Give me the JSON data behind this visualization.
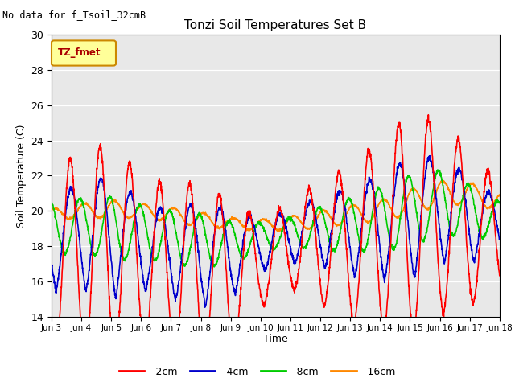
{
  "title": "Tonzi Soil Temperatures Set B",
  "subtitle": "No data for f_Tsoil_32cmB",
  "ylabel": "Soil Temperature (C)",
  "xlabel": "Time",
  "ylim": [
    14,
    30
  ],
  "xlim": [
    0,
    15
  ],
  "background_color": "#e8e8e8",
  "legend_box_label": "TZ_fmet",
  "legend_box_color": "#ffff99",
  "legend_box_edge": "#cc8800",
  "xtick_labels": [
    "Jun 3",
    "Jun 4",
    "Jun 5",
    "Jun 6",
    "Jun 7",
    "Jun 8",
    "Jun 9",
    "Jun 10",
    "Jun 11",
    "Jun 12",
    "Jun 13",
    "Jun 14",
    "Jun 15",
    "Jun 16",
    "Jun 17",
    "Jun 18"
  ],
  "series_colors": [
    "#ff0000",
    "#0000cc",
    "#00cc00",
    "#ff8800"
  ],
  "series_labels": [
    "-2cm",
    "-4cm",
    "-8cm",
    "-16cm"
  ],
  "series_linewidths": [
    1.2,
    1.2,
    1.2,
    1.2
  ],
  "yticks": [
    14,
    16,
    18,
    20,
    22,
    24,
    26,
    28,
    30
  ]
}
